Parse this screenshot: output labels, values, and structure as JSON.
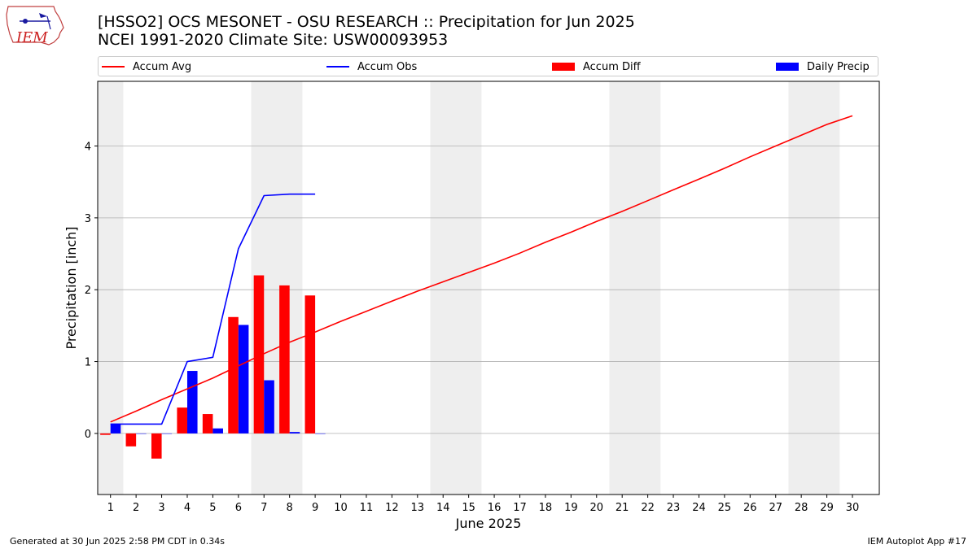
{
  "header": {
    "title_line1": "[HSSO2] OCS MESONET - OSU RESEARCH :: Precipitation for Jun 2025",
    "title_line2": "NCEI 1991-2020 Climate Site: USW00093953"
  },
  "logo": {
    "text": "IEM",
    "icon": "iem-iowa-map-icon"
  },
  "footer": {
    "left": "Generated at 30 Jun 2025 2:58 PM CDT in 0.34s",
    "right": "IEM Autoplot App #17"
  },
  "legend": {
    "accum_avg": "Accum Avg",
    "accum_obs": "Accum Obs",
    "accum_diff": "Accum Diff",
    "daily_precip": "Daily Precip"
  },
  "colors": {
    "accum_avg": "#ff0000",
    "accum_obs": "#0000ff",
    "accum_diff": "#ff0000",
    "daily_precip": "#0000ff",
    "weekend_band": "#eeeeee",
    "grid": "#b0b0b0"
  },
  "chart_data": {
    "type": "bar",
    "xlabel": "June 2025",
    "ylabel": "Precipitation [inch]",
    "xlim": [
      0.5,
      31.05
    ],
    "ylim": [
      -0.85,
      4.9
    ],
    "yticks": [
      0,
      1,
      2,
      3,
      4
    ],
    "grid": "horizontal",
    "legend_position": "top",
    "weekend_bands": [
      [
        0.5,
        1.5
      ],
      [
        6.5,
        8.5
      ],
      [
        13.5,
        15.5
      ],
      [
        20.5,
        22.5
      ],
      [
        27.5,
        29.5
      ]
    ],
    "days": [
      1,
      2,
      3,
      4,
      5,
      6,
      7,
      8,
      9,
      10,
      11,
      12,
      13,
      14,
      15,
      16,
      17,
      18,
      19,
      20,
      21,
      22,
      23,
      24,
      25,
      26,
      27,
      28,
      29,
      30
    ],
    "series": [
      {
        "name": "Accum Avg",
        "kind": "line",
        "x": [
          1,
          2,
          3,
          4,
          5,
          6,
          7,
          8,
          9,
          10,
          11,
          12,
          13,
          14,
          15,
          16,
          17,
          18,
          19,
          20,
          21,
          22,
          23,
          24,
          25,
          26,
          27,
          28,
          29,
          30
        ],
        "values": [
          0.16,
          0.31,
          0.47,
          0.62,
          0.77,
          0.94,
          1.11,
          1.27,
          1.41,
          1.56,
          1.7,
          1.84,
          1.98,
          2.11,
          2.24,
          2.37,
          2.51,
          2.66,
          2.8,
          2.95,
          3.09,
          3.24,
          3.39,
          3.54,
          3.69,
          3.85,
          4.0,
          4.15,
          4.3,
          4.42
        ]
      },
      {
        "name": "Accum Obs",
        "kind": "line",
        "x": [
          1,
          2,
          3,
          4,
          5,
          6,
          7,
          8,
          9
        ],
        "values": [
          0.13,
          0.13,
          0.13,
          1.0,
          1.06,
          2.57,
          3.31,
          3.33,
          3.33
        ]
      },
      {
        "name": "Accum Diff",
        "kind": "bar",
        "offset": -0.2,
        "x": [
          1,
          2,
          3,
          4,
          5,
          6,
          7,
          8,
          9
        ],
        "values": [
          -0.02,
          -0.18,
          -0.35,
          0.36,
          0.27,
          1.62,
          2.2,
          2.06,
          1.92
        ]
      },
      {
        "name": "Daily Precip",
        "kind": "bar",
        "offset": 0.2,
        "x": [
          1,
          2,
          3,
          4,
          5,
          6,
          7,
          8,
          9
        ],
        "values": [
          0.13,
          0,
          0,
          0.87,
          0.07,
          1.51,
          0.74,
          0.02,
          0
        ]
      }
    ]
  }
}
